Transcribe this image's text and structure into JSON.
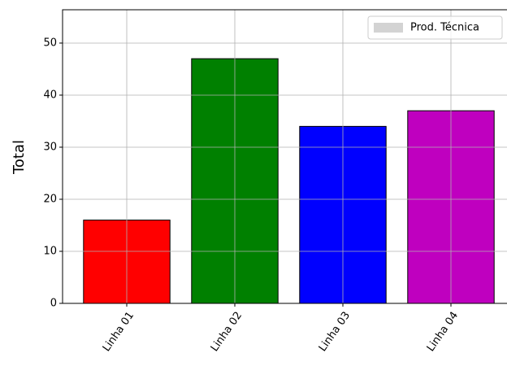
{
  "chart_data": {
    "type": "bar",
    "ylabel": "Total",
    "categories": [
      "Linha 01",
      "Linha 02",
      "Linha 03",
      "Linha 04"
    ],
    "values": [
      16,
      47,
      34,
      37
    ],
    "colors": [
      "#ff0000",
      "#008000",
      "#0000ff",
      "#bf00bf"
    ],
    "ylim": [
      0,
      56.4
    ],
    "yticks": [
      0,
      10,
      20,
      30,
      40,
      50
    ],
    "grid": true,
    "legend": {
      "label": "Prod. Técnica",
      "color": "#d3d3d3",
      "loc": "upper right"
    }
  }
}
